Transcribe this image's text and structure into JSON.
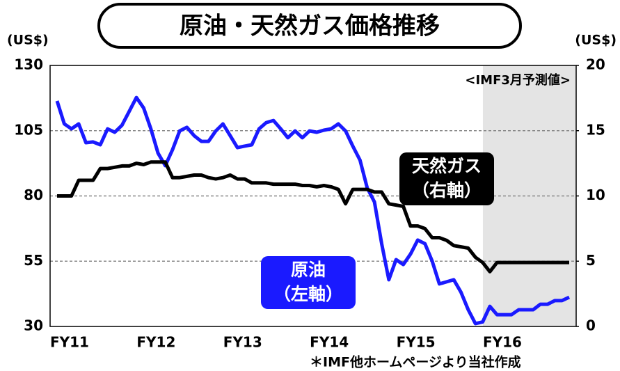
{
  "chart_data": {
    "type": "line",
    "title": "原油・天然ガス価格推移",
    "y_unit": "(US$)",
    "y2_unit": "(US$)",
    "annotation": "<IMF3月予測値>",
    "source_note": "＊IMF他ホームページより当社作成",
    "forecast_start_index": 60,
    "categories": [
      "FY11",
      null,
      null,
      null,
      null,
      null,
      null,
      null,
      null,
      null,
      null,
      null,
      "FY12",
      null,
      null,
      null,
      null,
      null,
      null,
      null,
      null,
      null,
      null,
      null,
      "FY13",
      null,
      null,
      null,
      null,
      null,
      null,
      null,
      null,
      null,
      null,
      null,
      "FY14",
      null,
      null,
      null,
      null,
      null,
      null,
      null,
      null,
      null,
      null,
      null,
      "FY15",
      null,
      null,
      null,
      null,
      null,
      null,
      null,
      null,
      null,
      null,
      null,
      "FY16",
      null,
      null,
      null,
      null,
      null,
      null,
      null,
      null,
      null,
      null,
      null
    ],
    "ylim": [
      30,
      130
    ],
    "yticks": [
      30,
      55,
      80,
      105,
      130
    ],
    "y2lim": [
      0,
      20
    ],
    "y2ticks": [
      0,
      5,
      10,
      15,
      20
    ],
    "grid": true,
    "series": [
      {
        "name": "原油",
        "axis_note": "（左軸）",
        "color": "#1a1aff",
        "values": [
          116.4,
          107.6,
          105.7,
          107.6,
          100.4,
          100.7,
          99.6,
          105.7,
          104.4,
          107.1,
          112.4,
          117.7,
          113.7,
          105.7,
          96.4,
          91.6,
          97.7,
          104.9,
          106.3,
          103.1,
          100.9,
          100.9,
          104.9,
          107.6,
          103.1,
          98.5,
          99.1,
          99.6,
          105.7,
          108.1,
          108.9,
          105.7,
          102.3,
          104.9,
          102.3,
          104.9,
          104.4,
          105.2,
          105.7,
          107.6,
          104.9,
          99.1,
          93.7,
          83.1,
          77.7,
          61.7,
          47.9,
          55.6,
          53.7,
          57.7,
          63.1,
          61.7,
          55.1,
          46.3,
          47.1,
          47.9,
          43.1,
          36.4,
          31.1,
          31.7,
          37.7,
          34.5,
          34.5,
          34.5,
          36.4,
          36.4,
          36.4,
          38.5,
          38.5,
          39.9,
          39.9,
          41.2
        ]
      },
      {
        "name": "天然ガス",
        "axis_note": "（右軸）",
        "color": "#000000",
        "axis": "y2",
        "values": [
          10.0,
          10.0,
          10.0,
          11.2,
          11.2,
          11.2,
          12.1,
          12.1,
          12.2,
          12.3,
          12.3,
          12.5,
          12.4,
          12.6,
          12.6,
          12.6,
          11.4,
          11.4,
          11.5,
          11.6,
          11.6,
          11.4,
          11.3,
          11.4,
          11.6,
          11.3,
          11.3,
          11.0,
          11.0,
          11.0,
          10.9,
          10.9,
          10.9,
          10.9,
          10.8,
          10.8,
          10.7,
          10.8,
          10.7,
          10.5,
          9.4,
          10.5,
          10.5,
          10.5,
          10.3,
          10.3,
          9.4,
          9.3,
          9.2,
          7.7,
          7.7,
          7.5,
          6.8,
          6.8,
          6.6,
          6.2,
          6.1,
          6.0,
          5.3,
          4.9,
          4.2,
          4.9,
          4.9,
          4.9,
          4.9,
          4.9,
          4.9,
          4.9,
          4.9,
          4.9,
          4.9,
          4.9
        ]
      }
    ]
  }
}
